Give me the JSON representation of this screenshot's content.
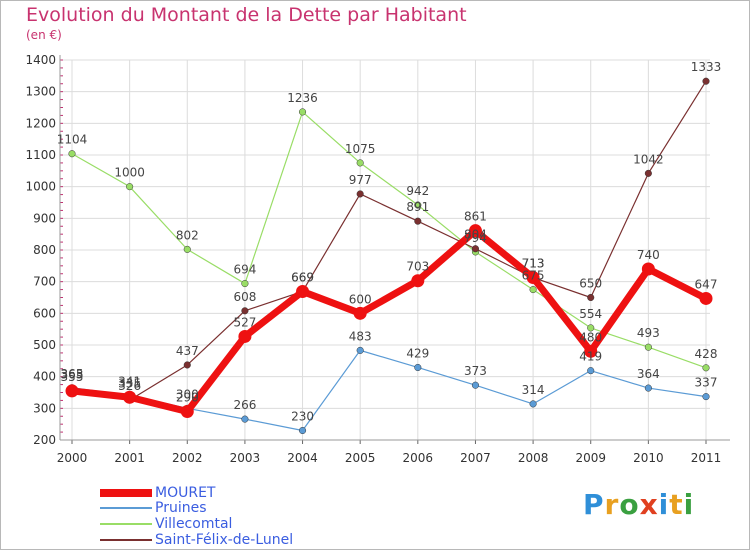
{
  "title": "Evolution du Montant de la Dette par Habitant",
  "unit": "(en €)",
  "logo": {
    "text": "Proxiti",
    "letters": [
      "P",
      "r",
      "o",
      "x",
      "i",
      "t",
      "i"
    ],
    "colors": [
      "#2f8fd8",
      "#e8a020",
      "#3aa040",
      "#e04020",
      "#2f8fd8",
      "#e8a020",
      "#3aa040"
    ]
  },
  "chart_data": {
    "type": "line",
    "title": "Evolution du Montant de la Dette par Habitant",
    "ylabel": "(en €)",
    "xlabel": "",
    "categories": [
      "2000",
      "2001",
      "2002",
      "2003",
      "2004",
      "2005",
      "2006",
      "2007",
      "2008",
      "2009",
      "2010",
      "2011"
    ],
    "yticks": [
      200,
      300,
      400,
      500,
      600,
      700,
      800,
      900,
      1000,
      1100,
      1200,
      1300,
      1400
    ],
    "ylim": [
      200,
      1400
    ],
    "grid": true,
    "legend": "bottom-left",
    "series": [
      {
        "name": "MOURET",
        "color": "#ee1111",
        "values": [
          355,
          335,
          290,
          527,
          669,
          600,
          703,
          861,
          713,
          480,
          740,
          647
        ]
      },
      {
        "name": "Pruines",
        "color": "#5b9bd5",
        "values": [
          365,
          341,
          300,
          266,
          230,
          483,
          429,
          373,
          314,
          419,
          364,
          337
        ]
      },
      {
        "name": "Villecomtal",
        "color": "#99dd66",
        "values": [
          1104,
          1000,
          802,
          694,
          1236,
          1075,
          942,
          794,
          675,
          554,
          493,
          428
        ]
      },
      {
        "name": "Saint-Félix-de-Lunel",
        "color": "#7a3030",
        "values": [
          363,
          326,
          437,
          608,
          669,
          977,
          891,
          804,
          713,
          650,
          1042,
          1333
        ]
      }
    ]
  }
}
